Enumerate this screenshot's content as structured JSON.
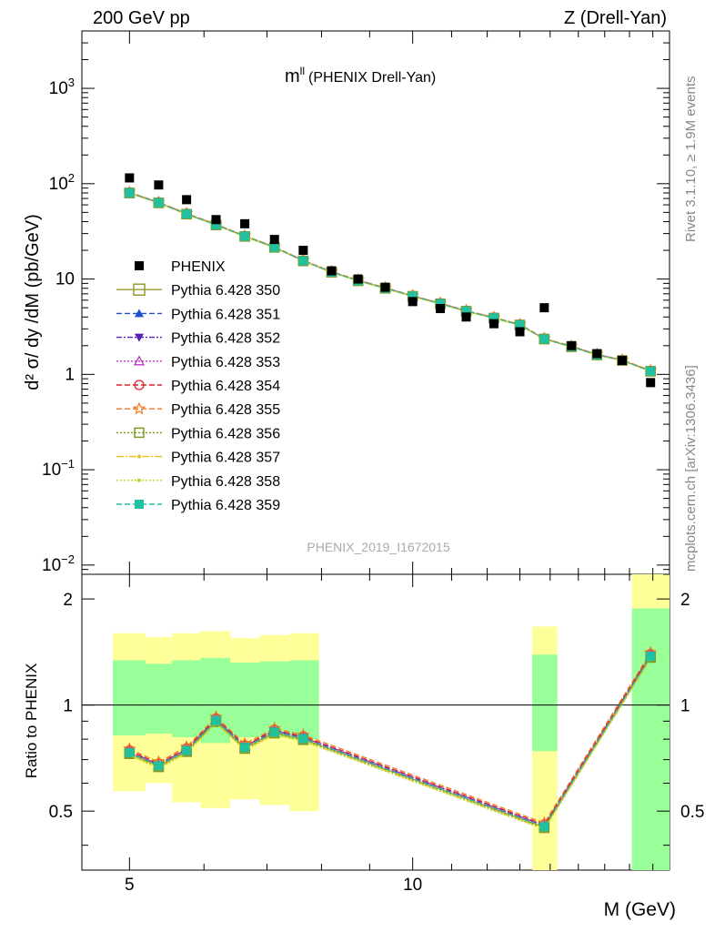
{
  "header": {
    "left": "200 GeV pp",
    "right": "Z (Drell-Yan)"
  },
  "side_notes": {
    "rivet": "Rivet 3.1.10, ≥ 1.9M events",
    "mcplots": "mcplots.cern.ch [arXiv:1306.3436]"
  },
  "chart_data": [
    {
      "type": "scatter",
      "title_main": "m",
      "title_sup": "ll",
      "title_rest": "(PHENIX Drell-Yan)",
      "ylabel": "d² σ/ dy /dM (pb/GeV)",
      "yscale": "log",
      "ylim": [
        0.008,
        4000
      ],
      "xlim": [
        4.45,
        18.75
      ],
      "yticks": [
        {
          "value": 1000,
          "label": "10^3"
        },
        {
          "value": 100,
          "label": "10^2"
        },
        {
          "value": 10,
          "label": "10"
        },
        {
          "value": 1,
          "label": "1"
        },
        {
          "value": 0.1,
          "label": "10^-1"
        },
        {
          "value": 0.01,
          "label": "10^-2"
        }
      ],
      "watermark": "PHENIX_2019_I1672015",
      "data_x": [
        5.0,
        5.37,
        5.75,
        6.18,
        6.63,
        7.13,
        7.65,
        8.2,
        8.75,
        9.35,
        10.0,
        10.7,
        11.4,
        12.2,
        13.0,
        13.8,
        14.75,
        15.7,
        16.7,
        17.9
      ],
      "data_y": [
        115,
        97,
        68,
        42,
        38,
        26,
        20,
        12.2,
        10,
        8.2,
        5.8,
        4.9,
        4.0,
        3.4,
        2.8,
        5.0,
        2.0,
        1.65,
        1.4,
        0.82
      ],
      "legend": [
        {
          "name": "PHENIX",
          "marker": "square-filled",
          "color": "#000000",
          "dash": ""
        },
        {
          "name": "Pythia 6.428 350",
          "marker": "square-open",
          "color": "#999933",
          "dash": ""
        },
        {
          "name": "Pythia 6.428 351",
          "marker": "triangle-up",
          "color": "#1f4fd0",
          "dash": "6,3"
        },
        {
          "name": "Pythia 6.428 352",
          "marker": "triangle-down",
          "color": "#5b1fb5",
          "dash": "6,2,2,2"
        },
        {
          "name": "Pythia 6.428 353",
          "marker": "triangle-up-open",
          "color": "#c030c0",
          "dash": "2,2"
        },
        {
          "name": "Pythia 6.428 354",
          "marker": "circle-open",
          "color": "#e0202a",
          "dash": "6,3"
        },
        {
          "name": "Pythia 6.428 355",
          "marker": "star",
          "color": "#f07820",
          "dash": "6,3"
        },
        {
          "name": "Pythia 6.428 356",
          "marker": "square-open",
          "color": "#7a9a20",
          "dash": "2,2"
        },
        {
          "name": "Pythia 6.428 357",
          "marker": "dot",
          "color": "#e8c020",
          "dash": "8,2,2,2"
        },
        {
          "name": "Pythia 6.428 358",
          "marker": "dot",
          "color": "#b8d820",
          "dash": "2,2"
        },
        {
          "name": "Pythia 6.428 359",
          "marker": "square-filled",
          "color": "#20c0a0",
          "dash": "6,3"
        }
      ],
      "mc_x": [
        5.0,
        5.37,
        5.75,
        6.18,
        6.63,
        7.13,
        7.65,
        8.2,
        8.75,
        9.35,
        10.0,
        10.7,
        11.4,
        12.2,
        13.0,
        13.8,
        14.75,
        15.7,
        16.7,
        17.9
      ],
      "mc_central": [
        80,
        63,
        48,
        37,
        28,
        21.5,
        15.5,
        11.8,
        9.6,
        8.0,
        6.6,
        5.5,
        4.6,
        3.9,
        3.3,
        2.35,
        1.95,
        1.6,
        1.4,
        1.08
      ]
    },
    {
      "type": "scatter",
      "ylabel": "Ratio to PHENIX",
      "xlabel": "M (GeV)",
      "yscale": "log",
      "ylim": [
        0.34,
        2.35
      ],
      "xlim": [
        4.45,
        18.75
      ],
      "xticks": [
        {
          "value": 5,
          "label": "5"
        },
        {
          "value": 10,
          "label": "10"
        }
      ],
      "yticks": [
        {
          "value": 0.5,
          "label": "0.5"
        },
        {
          "value": 1,
          "label": "1"
        },
        {
          "value": 2,
          "label": "2"
        }
      ],
      "bands": [
        {
          "x0": 4.8,
          "x1": 5.2,
          "yellow": [
            0.57,
            1.6
          ],
          "green": [
            0.82,
            1.34
          ]
        },
        {
          "x0": 5.2,
          "x1": 5.55,
          "yellow": [
            0.6,
            1.56
          ],
          "green": [
            0.83,
            1.31
          ]
        },
        {
          "x0": 5.55,
          "x1": 5.95,
          "yellow": [
            0.53,
            1.6
          ],
          "green": [
            0.81,
            1.34
          ]
        },
        {
          "x0": 5.95,
          "x1": 6.4,
          "yellow": [
            0.51,
            1.62
          ],
          "green": [
            0.78,
            1.36
          ]
        },
        {
          "x0": 6.4,
          "x1": 6.88,
          "yellow": [
            0.54,
            1.55
          ],
          "green": [
            0.81,
            1.32
          ]
        },
        {
          "x0": 6.88,
          "x1": 7.4,
          "yellow": [
            0.52,
            1.58
          ],
          "green": [
            0.81,
            1.33
          ]
        },
        {
          "x0": 7.4,
          "x1": 7.95,
          "yellow": [
            0.5,
            1.6
          ],
          "green": [
            0.8,
            1.34
          ]
        },
        {
          "x0": 13.4,
          "x1": 14.25,
          "yellow": [
            0.3,
            1.67
          ],
          "green": [
            0.74,
            1.39
          ]
        },
        {
          "x0": 17.1,
          "x1": 18.75,
          "yellow": [
            0.3,
            2.8
          ],
          "green": [
            0.3,
            1.88
          ]
        }
      ],
      "ratio_x": [
        5.0,
        5.37,
        5.75,
        6.18,
        6.63,
        7.13,
        7.65,
        13.8,
        17.9
      ],
      "ratio_central": [
        0.73,
        0.67,
        0.74,
        0.9,
        0.755,
        0.835,
        0.8,
        0.45,
        1.37
      ],
      "series_offsets": [
        0.0,
        0.008,
        0.012,
        0.01,
        0.018,
        0.028,
        -0.004,
        -0.01,
        -0.014,
        0.004
      ]
    }
  ]
}
